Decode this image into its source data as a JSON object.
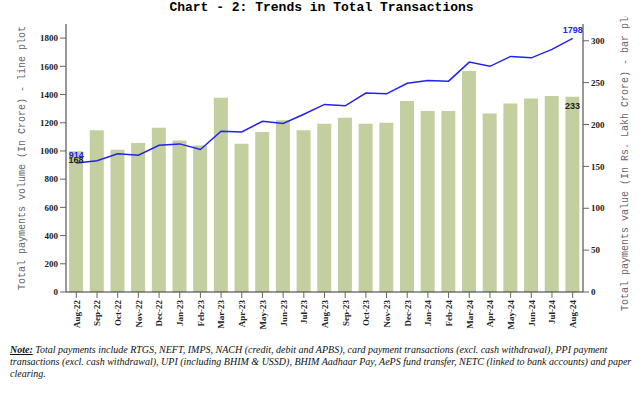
{
  "chart_data": {
    "type": "bar_line",
    "title": "Chart - 2: Trends in Total Transactions",
    "note_label": "Note:",
    "note": "Total payments include RTGS, NEFT, IMPS, NACH (credit, debit and APBS), card payment transactions (excl. cash withdrawal), PPI payment transactions (excl. cash withdrawal), UPI (including BHIM & USSD), BHIM Aadhaar Pay, AePS fund transfer, NETC (linked to bank accounts) and paper clearing.",
    "categories": [
      "Aug-22",
      "Sep-22",
      "Oct-22",
      "Nov-22",
      "Dec-22",
      "Jan-23",
      "Feb-23",
      "Mar-23",
      "Apr-23",
      "May-23",
      "Jun-23",
      "Jul-23",
      "Aug-23",
      "Sep-23",
      "Oct-23",
      "Nov-23",
      "Dec-23",
      "Jan-24",
      "Feb-24",
      "Mar-24",
      "Apr-24",
      "May-24",
      "Jun-24",
      "Jul-24",
      "Aug-24"
    ],
    "y_label": "Total payments volume (In Crore) - line plot",
    "y2_label": "Total payments value (In Rs. Lakh Crore) - bar plot",
    "ylim": [
      0,
      1900
    ],
    "yticks": [
      0,
      200,
      400,
      600,
      800,
      1000,
      1200,
      1400,
      1600,
      1800
    ],
    "y2lim": [
      0,
      320
    ],
    "y2ticks": [
      0,
      50,
      100,
      150,
      200,
      250,
      300
    ],
    "grid": false,
    "series": [
      {
        "name": "Total payments value",
        "type": "bar",
        "axis": "y2",
        "color": "#c3cf9f",
        "values": [
          168,
          193,
          170,
          178,
          196,
          181,
          175,
          232,
          177,
          191,
          205,
          193,
          201,
          208,
          201,
          202,
          228,
          216,
          216,
          264,
          213,
          225,
          231,
          234,
          233
        ],
        "value_labels": [
          "168",
          null,
          null,
          null,
          null,
          null,
          null,
          null,
          null,
          null,
          null,
          null,
          null,
          null,
          null,
          null,
          null,
          null,
          null,
          null,
          null,
          null,
          null,
          null,
          "233"
        ]
      },
      {
        "name": "Total payments volume",
        "type": "line",
        "axis": "y",
        "color": "#2222ee",
        "marker": "none",
        "values": [
          914,
          930,
          980,
          970,
          1040,
          1050,
          1010,
          1140,
          1135,
          1210,
          1195,
          1260,
          1330,
          1320,
          1410,
          1405,
          1480,
          1500,
          1495,
          1630,
          1600,
          1670,
          1660,
          1720,
          1798
        ],
        "value_labels": [
          "914",
          null,
          null,
          null,
          null,
          null,
          null,
          null,
          null,
          null,
          null,
          null,
          null,
          null,
          null,
          null,
          null,
          null,
          null,
          null,
          null,
          null,
          null,
          null,
          "1798"
        ]
      }
    ]
  }
}
